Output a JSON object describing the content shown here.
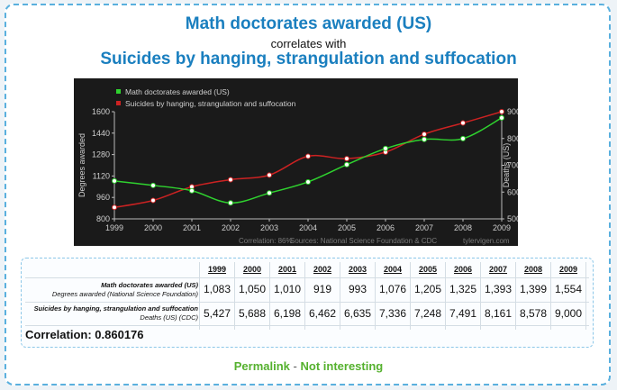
{
  "titles": {
    "series1": "Math doctorates awarded (US)",
    "connector": "correlates with",
    "series2": "Suicides by hanging, strangulation and suffocation"
  },
  "chart_data": {
    "type": "line",
    "x": [
      1999,
      2000,
      2001,
      2002,
      2003,
      2004,
      2005,
      2006,
      2007,
      2008,
      2009
    ],
    "series": [
      {
        "name": "Math doctorates awarded (US)",
        "axis": "left",
        "color": "#2fd22f",
        "values": [
          1083,
          1050,
          1010,
          919,
          993,
          1076,
          1205,
          1325,
          1393,
          1399,
          1554
        ]
      },
      {
        "name": "Suicides by hanging, strangulation and suffocation",
        "axis": "right",
        "color": "#cc2222",
        "values": [
          5427,
          5688,
          6198,
          6462,
          6635,
          7336,
          7248,
          7491,
          8161,
          8578,
          9000
        ]
      }
    ],
    "ylabel_left": "Degrees awarded",
    "ylabel_right": "Deaths (US)",
    "ylim_left": [
      800,
      1600
    ],
    "yticks_left": [
      800,
      960,
      1120,
      1280,
      1440,
      1600
    ],
    "ylim_right": [
      5000,
      9000
    ],
    "yticks_right": [
      5000,
      6000,
      7000,
      8000,
      9000
    ],
    "footer_correlation": "Correlation: 86%",
    "footer_sources": "Sources: National Science Foundation & CDC",
    "footer_site": "tylervigen.com",
    "legend_position": "top-left",
    "grid": false,
    "background": "#1a1a1a"
  },
  "table": {
    "row1_title": "Math doctorates awarded (US)",
    "row1_sub": "Degrees awarded (National Science Foundation)",
    "row2_title": "Suicides by hanging, strangulation and suffocation",
    "row2_sub": "Deaths (US) (CDC)",
    "years": [
      "1999",
      "2000",
      "2001",
      "2002",
      "2003",
      "2004",
      "2005",
      "2006",
      "2007",
      "2008",
      "2009"
    ],
    "row1": [
      "1,083",
      "1,050",
      "1,010",
      "919",
      "993",
      "1,076",
      "1,205",
      "1,325",
      "1,393",
      "1,399",
      "1,554"
    ],
    "row2": [
      "5,427",
      "5,688",
      "6,198",
      "6,462",
      "6,635",
      "7,336",
      "7,248",
      "7,491",
      "8,161",
      "8,578",
      "9,000"
    ],
    "correlation": "Correlation: 0.860176"
  },
  "links": {
    "permalink": "Permalink",
    "separator": "-",
    "not_interesting": "Not interesting"
  }
}
